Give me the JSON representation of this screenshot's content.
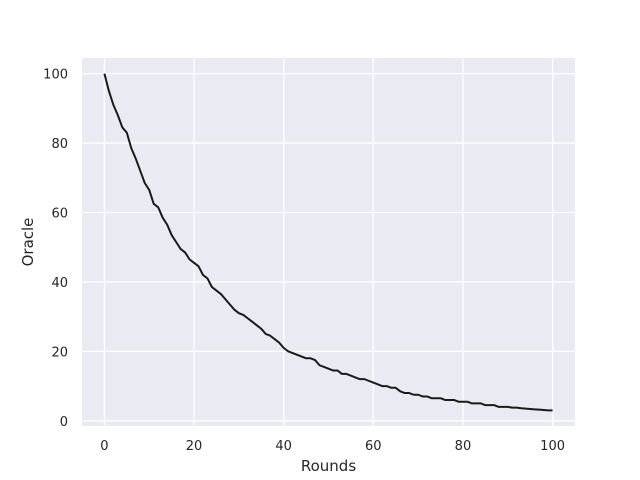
{
  "chart_data": {
    "type": "line",
    "xlabel": "Rounds",
    "ylabel": "Oracle",
    "xlim": [
      -5,
      105
    ],
    "ylim": [
      -1.5,
      104.5
    ],
    "xticks": [
      0,
      20,
      40,
      60,
      80,
      100
    ],
    "yticks": [
      0,
      20,
      40,
      60,
      80,
      100
    ],
    "grid": true,
    "background": "#eaeaf2",
    "grid_color": "#ffffff",
    "line_color": "#1a1a1a",
    "series": [
      {
        "x": [
          0,
          1,
          2,
          3,
          4,
          5,
          6,
          7,
          8,
          9,
          10,
          11,
          12,
          13,
          14,
          15,
          16,
          17,
          18,
          19,
          20,
          21,
          22,
          23,
          24,
          25,
          26,
          27,
          28,
          29,
          30,
          31,
          32,
          33,
          34,
          35,
          36,
          37,
          38,
          39,
          40,
          41,
          42,
          43,
          44,
          45,
          46,
          47,
          48,
          49,
          50,
          51,
          52,
          53,
          54,
          55,
          56,
          57,
          58,
          59,
          60,
          61,
          62,
          63,
          64,
          65,
          66,
          67,
          68,
          69,
          70,
          71,
          72,
          73,
          74,
          75,
          76,
          77,
          78,
          79,
          80,
          81,
          82,
          83,
          84,
          85,
          86,
          87,
          88,
          89,
          90,
          91,
          92,
          93,
          94,
          95,
          96,
          97,
          98,
          99,
          100
        ],
        "values": [
          100,
          95,
          91,
          88,
          84.5,
          83,
          78.5,
          75.5,
          72,
          68.5,
          66.5,
          62.5,
          61.5,
          58.5,
          56.5,
          53.5,
          51.5,
          49.5,
          48.5,
          46.5,
          45.5,
          44.5,
          42,
          41,
          38.5,
          37.5,
          36.5,
          35,
          33.5,
          32,
          31,
          30.5,
          29.5,
          28.5,
          27.5,
          26.5,
          25,
          24.5,
          23.5,
          22.5,
          21,
          20,
          19.5,
          19,
          18.5,
          18,
          18,
          17.5,
          16,
          15.5,
          15,
          14.5,
          14.5,
          13.5,
          13.5,
          13,
          12.5,
          12,
          12,
          11.5,
          11,
          10.5,
          10,
          10,
          9.5,
          9.5,
          8.5,
          8,
          8,
          7.5,
          7.5,
          7,
          7,
          6.5,
          6.5,
          6.5,
          6,
          6,
          6,
          5.5,
          5.5,
          5.5,
          5,
          5,
          5,
          4.5,
          4.5,
          4.5,
          4,
          4,
          4,
          3.8,
          3.8,
          3.6,
          3.5,
          3.4,
          3.3,
          3.2,
          3.1,
          3,
          3
        ]
      }
    ]
  }
}
